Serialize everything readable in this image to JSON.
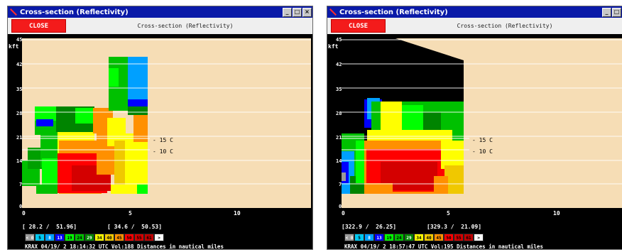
{
  "colors": {
    "title_bar": "#0a1aa8",
    "close_button": "#f31b1b",
    "background_tan": "#f6ddb5",
    "plot_black": "#000000"
  },
  "color_scale": [
    {
      "label": "< 0",
      "color": "#9a9a9a"
    },
    {
      "label": "5",
      "color": "#00c8f0"
    },
    {
      "label": "8",
      "color": "#00a0ff"
    },
    {
      "label": "13",
      "color": "#0000ff"
    },
    {
      "label": "19",
      "color": "#00ff00"
    },
    {
      "label": "24",
      "color": "#00c000"
    },
    {
      "label": "29",
      "color": "#008400"
    },
    {
      "label": "34",
      "color": "#ffff00"
    },
    {
      "label": "40",
      "color": "#f0c800"
    },
    {
      "label": "45",
      "color": "#ff9000"
    },
    {
      "label": "50",
      "color": "#ff0000"
    },
    {
      "label": "55",
      "color": "#d40000"
    },
    {
      "label": "61",
      "color": "#c00000"
    },
    {
      "label": "> 65",
      "color": "#ffffff"
    }
  ],
  "windows": [
    {
      "title": "Cross-section (Reflectivity)",
      "close_label": "CLOSE",
      "subtitle": "Cross-section (Reflectivity)",
      "btn_min": "_",
      "btn_max": "□",
      "btn_close": "×",
      "y_unit": "kft",
      "y_ticks": [
        "0",
        "7",
        "14",
        "21",
        "28",
        "35",
        "42",
        "45"
      ],
      "x_ticks": [
        "0",
        "5",
        "10"
      ],
      "temps": [
        "- 15 C",
        "- 10 C"
      ],
      "coord_left": "[ 28.2 /  51.96]",
      "coord_right": "[ 34.6 /  50.53]",
      "status": "KRAX 04/19/ 2 18:14:32 UTC Vol:188 Distances in nautical miles"
    },
    {
      "title": "Cross-section (Reflectivity)",
      "close_label": "CLOSE",
      "subtitle": "Cross-section (Reflectivity)",
      "btn_min": "_",
      "btn_max": "□",
      "btn_close": "×",
      "y_unit": "kft",
      "y_ticks": [
        "0",
        "7",
        "14",
        "21",
        "28",
        "35",
        "42",
        "45"
      ],
      "x_ticks": [
        "0",
        "5",
        "10"
      ],
      "temps": [
        "- 15 C",
        "- 10 C"
      ],
      "coord_left": "[322.9 /  26.25]",
      "coord_right": "[329.3 /  21.09]",
      "status": "KRAX 04/19/ 2 18:57:47 UTC Vol:195 Distances in nautical miles"
    }
  ]
}
